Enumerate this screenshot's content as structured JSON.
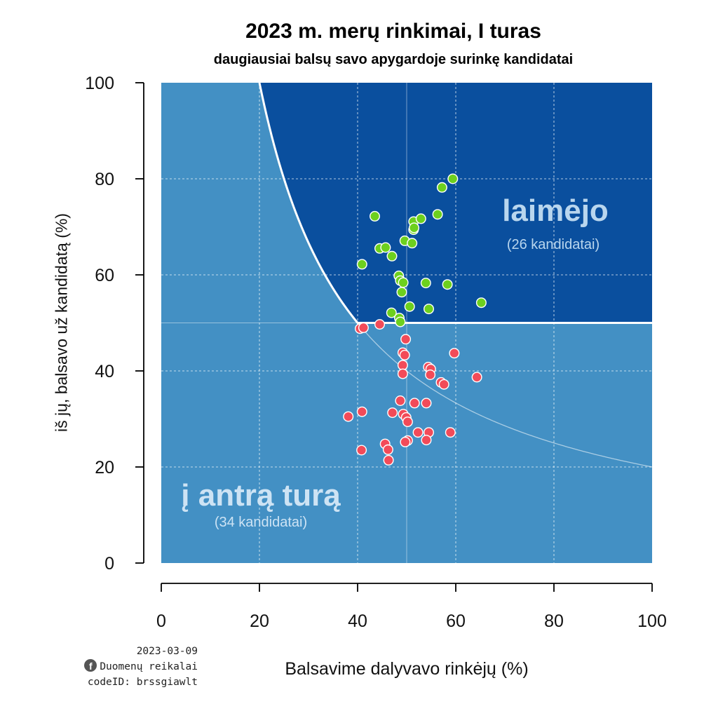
{
  "chart_data": {
    "type": "scatter",
    "title": "2023 m. merų rinkimai, I turas",
    "subtitle": "daugiausiai balsų savo apygardoje surinkę kandidatai",
    "xlabel": "Balsavime dalyvavo rinkėjų (%)",
    "ylabel": "iš jų, balsavo už kandidatą (%)",
    "xlim": [
      0,
      100
    ],
    "ylim": [
      0,
      100
    ],
    "xticks": [
      "0",
      "20",
      "40",
      "60",
      "80",
      "100"
    ],
    "yticks": [
      "0",
      "20",
      "40",
      "60",
      "80",
      "100"
    ],
    "grid": true,
    "colors": {
      "region_winner": "#0a4f9e",
      "region_runoff": "#4390c4",
      "winner_points": "#6dd01e",
      "runoff_points": "#f24b59",
      "boundary": "#ffffff"
    },
    "regions": {
      "winner_label": "laimėjo",
      "winner_count": "(26 kandidatai)",
      "runoff_label": "į antrą turą",
      "runoff_count": "(34 kandidatai)"
    },
    "series": [
      {
        "label_ref": "laimėjo",
        "points": [
          [
            43.5,
            72.2
          ],
          [
            57.2,
            78.2
          ],
          [
            59.4,
            80.0
          ],
          [
            51.4,
            71.1
          ],
          [
            52.9,
            71.7
          ],
          [
            56.3,
            72.6
          ],
          [
            51.4,
            69.4
          ],
          [
            51.5,
            69.8
          ],
          [
            44.5,
            65.5
          ],
          [
            45.7,
            65.7
          ],
          [
            49.6,
            67.1
          ],
          [
            51.1,
            66.6
          ],
          [
            47.0,
            63.9
          ],
          [
            40.9,
            62.2
          ],
          [
            48.4,
            59.8
          ],
          [
            48.7,
            58.8
          ],
          [
            49.3,
            58.4
          ],
          [
            49.0,
            56.4
          ],
          [
            53.9,
            58.3
          ],
          [
            58.3,
            58.0
          ],
          [
            50.6,
            53.4
          ],
          [
            54.5,
            52.9
          ],
          [
            65.2,
            54.2
          ],
          [
            46.9,
            52.1
          ],
          [
            48.5,
            51.0
          ],
          [
            48.7,
            50.2
          ]
        ]
      },
      {
        "label_ref": "į antrą turą",
        "points": [
          [
            40.5,
            48.8
          ],
          [
            41.2,
            49.0
          ],
          [
            44.5,
            49.7
          ],
          [
            49.8,
            46.6
          ],
          [
            49.2,
            43.8
          ],
          [
            49.6,
            43.3
          ],
          [
            49.2,
            41.2
          ],
          [
            49.2,
            39.4
          ],
          [
            54.4,
            40.8
          ],
          [
            54.9,
            40.4
          ],
          [
            54.8,
            39.2
          ],
          [
            59.7,
            43.7
          ],
          [
            57.0,
            37.6
          ],
          [
            57.6,
            37.2
          ],
          [
            64.3,
            38.7
          ],
          [
            48.7,
            33.8
          ],
          [
            51.6,
            33.3
          ],
          [
            54.0,
            33.3
          ],
          [
            38.1,
            30.5
          ],
          [
            40.9,
            31.5
          ],
          [
            47.1,
            31.3
          ],
          [
            49.3,
            31.0
          ],
          [
            49.9,
            30.3
          ],
          [
            50.2,
            29.4
          ],
          [
            52.3,
            27.2
          ],
          [
            54.5,
            27.2
          ],
          [
            58.9,
            27.2
          ],
          [
            54.0,
            25.6
          ],
          [
            50.2,
            25.5
          ],
          [
            49.7,
            25.2
          ],
          [
            45.6,
            24.8
          ],
          [
            46.2,
            23.6
          ],
          [
            40.8,
            23.5
          ],
          [
            46.3,
            21.4
          ]
        ]
      }
    ]
  },
  "credits": {
    "date": "2023-03-09",
    "source": "Duomenų reikalai",
    "code": "codeID: brssgiawlt",
    "icon": "facebook-icon"
  }
}
